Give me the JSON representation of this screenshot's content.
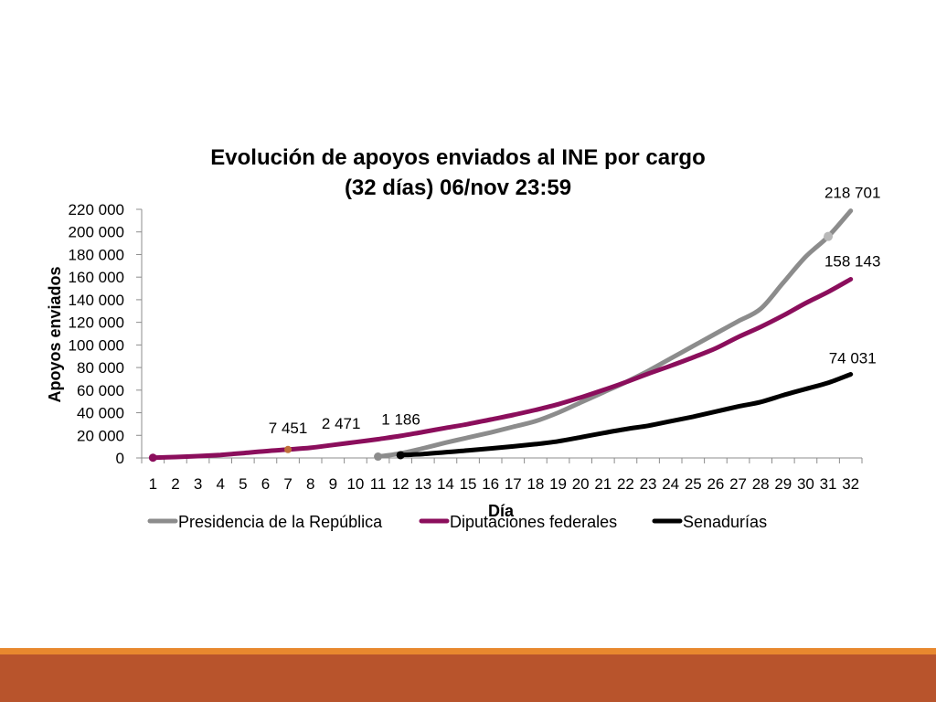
{
  "colors": {
    "background": "#ffffff",
    "presidencia": "#8c8c8c",
    "diputaciones": "#8b0e5c",
    "senadurias": "#000000",
    "marker_orange": "#c0703a",
    "footer_main": "#b8542c",
    "footer_line": "#e8882e"
  },
  "chart_data": {
    "type": "line",
    "title_line1": "Evolución de apoyos enviados al INE por cargo",
    "title_line2": "(32 días) 06/nov 23:59",
    "xlabel": "Día",
    "ylabel": "Apoyos enviados",
    "ylim": [
      0,
      220000
    ],
    "y_ticks": [
      0,
      20000,
      40000,
      60000,
      80000,
      100000,
      120000,
      140000,
      160000,
      180000,
      200000,
      220000
    ],
    "y_tick_labels": [
      "0",
      "20 000",
      "40 000",
      "60 000",
      "80 000",
      "100 000",
      "120 000",
      "140 000",
      "160 000",
      "180 000",
      "200 000",
      "220 000"
    ],
    "categories": [
      "1",
      "2",
      "3",
      "4",
      "5",
      "6",
      "7",
      "8",
      "9",
      "10",
      "11",
      "12",
      "13",
      "14",
      "15",
      "16",
      "17",
      "18",
      "19",
      "20",
      "21",
      "22",
      "23",
      "24",
      "25",
      "26",
      "27",
      "28",
      "29",
      "30",
      "31",
      "32"
    ],
    "series": [
      {
        "name": "Presidencia de la República",
        "color_key": "presidencia",
        "x": [
          11,
          12,
          13,
          14,
          15,
          16,
          17,
          18,
          19,
          20,
          21,
          22,
          23,
          24,
          25,
          26,
          27,
          28,
          29,
          30,
          31,
          32
        ],
        "values": [
          1186,
          4000,
          8500,
          13500,
          18000,
          22500,
          27500,
          32500,
          40000,
          49000,
          58000,
          67000,
          77000,
          88000,
          99000,
          110000,
          121000,
          132000,
          155000,
          178000,
          196000,
          218701
        ]
      },
      {
        "name": "Diputaciones federales",
        "color_key": "diputaciones",
        "x": [
          1,
          2,
          3,
          4,
          5,
          6,
          7,
          8,
          9,
          10,
          11,
          12,
          13,
          14,
          15,
          16,
          17,
          18,
          19,
          20,
          21,
          22,
          23,
          24,
          25,
          26,
          27,
          28,
          29,
          30,
          31,
          32
        ],
        "values": [
          200,
          800,
          1600,
          2700,
          4300,
          6000,
          7451,
          9000,
          11500,
          14000,
          16600,
          19500,
          23000,
          26500,
          30000,
          34000,
          38000,
          42500,
          47500,
          53500,
          60000,
          67000,
          74500,
          81500,
          89000,
          97000,
          107000,
          116000,
          126000,
          137000,
          147000,
          158143
        ]
      },
      {
        "name": "Senadurías",
        "color_key": "senadurias",
        "x": [
          12,
          13,
          14,
          15,
          16,
          17,
          18,
          19,
          20,
          21,
          22,
          23,
          24,
          25,
          26,
          27,
          28,
          29,
          30,
          31,
          32
        ],
        "values": [
          2471,
          3500,
          5000,
          6700,
          8400,
          10200,
          12200,
          14700,
          18300,
          22000,
          25500,
          28500,
          32500,
          36500,
          41000,
          45500,
          49500,
          55500,
          61000,
          66500,
          74031
        ]
      }
    ],
    "data_labels": [
      {
        "text": "7 451",
        "series": 1,
        "x": 7
      },
      {
        "text": "2 471",
        "series": 2,
        "x": 12
      },
      {
        "text": "1 186",
        "series": 0,
        "x": 11
      },
      {
        "text": "218 701",
        "series": 0,
        "x": 32
      },
      {
        "text": "158 143",
        "series": 1,
        "x": 32
      },
      {
        "text": "74 031",
        "series": 2,
        "x": 32
      }
    ],
    "grid": false,
    "legend_position": "bottom"
  }
}
